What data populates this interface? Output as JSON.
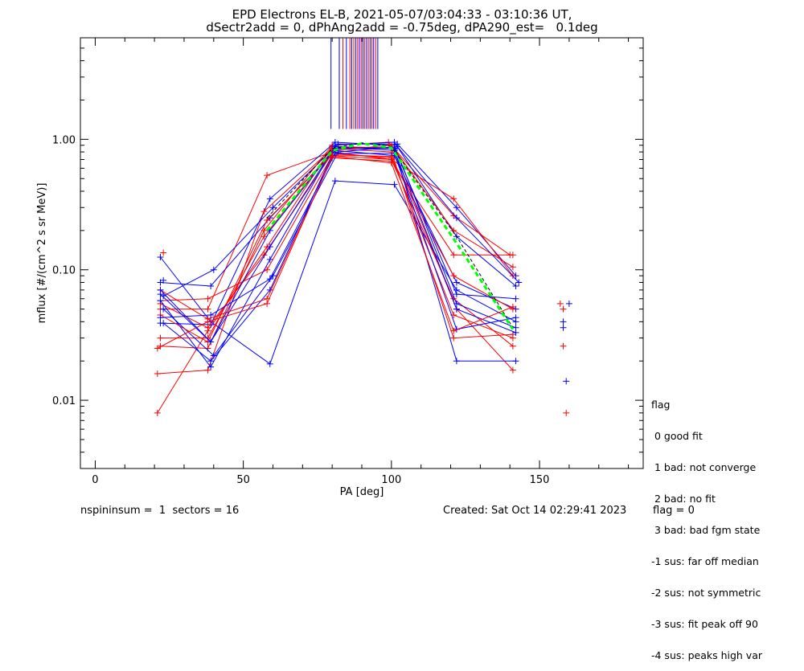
{
  "title_line1": "EPD Electrons EL-B, 2021-05-07/03:04:33 - 03:10:36 UT,",
  "title_line2": "dSectr2add = 0, dPhAng2add = -0.75deg, dPA290_est=   0.1deg",
  "footer": {
    "nspin": "nspininsum =  1  sectors = 16",
    "created": "Created: Sat Oct 14 02:29:41 2023",
    "flag": "flag = 0"
  },
  "legend": {
    "title": "flag",
    "items": [
      " 0 good fit",
      " 1 bad: not converge",
      " 2 bad: no fit",
      " 3 bad: bad fgm state",
      "-1 sus: far off median",
      "-2 sus: not symmetric",
      "-3 sus: fit peak off 90",
      "-4 sus: peaks high var"
    ]
  },
  "colors": {
    "red": "#ff0000",
    "blue": "#0000ff",
    "green": "#00ff00",
    "black": "#000000"
  },
  "chart_data": {
    "type": "line",
    "xlabel": "PA [deg]",
    "ylabel": "mflux [#/(cm^2 s sr MeV)]",
    "xlim": [
      -5,
      185
    ],
    "ylim": [
      0.003,
      6.0
    ],
    "yscale": "log",
    "xticks": [
      0,
      50,
      100,
      150
    ],
    "yticks": [
      0.01,
      0.1,
      1.0
    ],
    "ytick_labels": [
      "0.01",
      "0.10",
      "1.00"
    ],
    "series": [
      {
        "color": "red",
        "x": [
          21,
          38,
          58,
          80,
          100,
          122,
          141
        ],
        "y": [
          0.008,
          0.034,
          0.15,
          0.88,
          0.86,
          0.05,
          0.017
        ]
      },
      {
        "color": "blue",
        "x": [
          22,
          39,
          59,
          81,
          101,
          122,
          142
        ],
        "y": [
          0.125,
          0.04,
          0.019,
          0.48,
          0.45,
          0.07,
          0.04
        ]
      },
      {
        "color": "red",
        "x": [
          22,
          38,
          58,
          80,
          100,
          121,
          141
        ],
        "y": [
          0.05,
          0.05,
          0.53,
          0.8,
          0.7,
          0.06,
          0.026
        ]
      },
      {
        "color": "blue",
        "x": [
          22,
          39,
          59,
          81,
          101,
          122,
          142
        ],
        "y": [
          0.039,
          0.038,
          0.35,
          0.95,
          0.9,
          0.055,
          0.036
        ]
      },
      {
        "color": "red",
        "x": [
          21,
          38,
          57,
          80,
          100,
          121,
          141
        ],
        "y": [
          0.016,
          0.017,
          0.28,
          0.85,
          0.8,
          0.03,
          0.032
        ]
      },
      {
        "color": "blue",
        "x": [
          23,
          40,
          60,
          82,
          102,
          122,
          142
        ],
        "y": [
          0.063,
          0.1,
          0.3,
          0.92,
          0.92,
          0.3,
          0.09
        ]
      },
      {
        "color": "red",
        "x": [
          22,
          38,
          57,
          80,
          99,
          121,
          140
        ],
        "y": [
          0.026,
          0.025,
          0.2,
          0.9,
          0.95,
          0.26,
          0.13
        ]
      },
      {
        "color": "blue",
        "x": [
          22,
          39,
          59,
          81,
          101,
          122,
          142
        ],
        "y": [
          0.08,
          0.075,
          0.25,
          0.82,
          0.75,
          0.08,
          0.05
        ]
      },
      {
        "color": "red",
        "x": [
          22,
          38,
          58,
          80,
          100,
          121,
          141
        ],
        "y": [
          0.058,
          0.06,
          0.1,
          0.75,
          0.7,
          0.35,
          0.09
        ]
      },
      {
        "color": "blue",
        "x": [
          23,
          39,
          59,
          81,
          101,
          122,
          142
        ],
        "y": [
          0.039,
          0.02,
          0.07,
          0.85,
          0.85,
          0.02,
          0.02
        ]
      },
      {
        "color": "red",
        "x": [
          22,
          38,
          57,
          80,
          100,
          121,
          141
        ],
        "y": [
          0.055,
          0.036,
          0.13,
          0.78,
          0.72,
          0.09,
          0.05
        ]
      },
      {
        "color": "blue",
        "x": [
          22,
          39,
          59,
          81,
          101,
          122,
          142
        ],
        "y": [
          0.065,
          0.028,
          0.15,
          0.88,
          0.82,
          0.05,
          0.033
        ]
      },
      {
        "color": "red",
        "x": [
          22,
          38,
          58,
          80,
          100,
          121,
          141
        ],
        "y": [
          0.07,
          0.042,
          0.06,
          0.72,
          0.68,
          0.13,
          0.13
        ]
      },
      {
        "color": "blue",
        "x": [
          22,
          39,
          59,
          81,
          101,
          122,
          142
        ],
        "y": [
          0.058,
          0.018,
          0.12,
          0.9,
          0.95,
          0.18,
          0.075
        ]
      },
      {
        "color": "red",
        "x": [
          22,
          38,
          57,
          80,
          100,
          121,
          141
        ],
        "y": [
          0.03,
          0.03,
          0.18,
          0.82,
          0.9,
          0.2,
          0.105
        ]
      },
      {
        "color": "blue",
        "x": [
          23,
          40,
          60,
          82,
          102,
          122,
          143
        ],
        "y": [
          0.05,
          0.022,
          0.09,
          0.8,
          0.88,
          0.25,
          0.08
        ]
      },
      {
        "color": "red",
        "x": [
          22,
          38,
          58,
          80,
          100,
          121,
          141
        ],
        "y": [
          0.045,
          0.028,
          0.24,
          0.76,
          0.74,
          0.045,
          0.03
        ]
      },
      {
        "color": "blue",
        "x": [
          22,
          39,
          59,
          81,
          101,
          122,
          142
        ],
        "y": [
          0.043,
          0.045,
          0.085,
          0.78,
          0.78,
          0.035,
          0.043
        ]
      },
      {
        "color": "red",
        "x": [
          21,
          38,
          58,
          80,
          100,
          121,
          141
        ],
        "y": [
          0.025,
          0.04,
          0.055,
          0.74,
          0.66,
          0.034,
          0.052
        ]
      },
      {
        "color": "blue",
        "x": [
          22,
          39,
          59,
          81,
          101,
          122,
          142
        ],
        "y": [
          0.07,
          0.028,
          0.2,
          0.86,
          0.86,
          0.065,
          0.06
        ]
      },
      {
        "color": "black",
        "dashed": true,
        "x": [
          58,
          80,
          90,
          100,
          122,
          141
        ],
        "y": [
          0.25,
          0.85,
          0.94,
          0.88,
          0.18,
          0.036
        ]
      },
      {
        "color": "green",
        "dashed": true,
        "thick": true,
        "x": [
          58,
          80,
          90,
          100,
          122,
          141
        ],
        "y": [
          0.2,
          0.82,
          0.93,
          0.86,
          0.16,
          0.035
        ]
      }
    ],
    "isolated_points": [
      {
        "color": "red",
        "x": 157,
        "y": 0.055
      },
      {
        "color": "red",
        "x": 158,
        "y": 0.05
      },
      {
        "color": "red",
        "x": 158,
        "y": 0.026
      },
      {
        "color": "red",
        "x": 159,
        "y": 0.008
      },
      {
        "color": "blue",
        "x": 158,
        "y": 0.04
      },
      {
        "color": "blue",
        "x": 159,
        "y": 0.014
      },
      {
        "color": "blue",
        "x": 160,
        "y": 0.055
      },
      {
        "color": "blue",
        "x": 158,
        "y": 0.036
      },
      {
        "color": "red",
        "x": 23,
        "y": 0.135
      },
      {
        "color": "blue",
        "x": 23,
        "y": 0.083
      }
    ],
    "vertical_markers": [
      {
        "color": "blue",
        "x": 79.6
      },
      {
        "color": "blue",
        "x": 82.4
      },
      {
        "color": "red",
        "x": 83.6
      },
      {
        "color": "blue",
        "x": 84.8
      },
      {
        "color": "red",
        "x": 86.0
      },
      {
        "color": "blue",
        "x": 86.6
      },
      {
        "color": "red",
        "x": 87.3
      },
      {
        "color": "blue",
        "x": 88.0
      },
      {
        "color": "red",
        "x": 88.6
      },
      {
        "color": "blue",
        "x": 89.2
      },
      {
        "color": "red",
        "x": 89.8
      },
      {
        "color": "blue",
        "x": 90.4
      },
      {
        "color": "red",
        "x": 91.0
      },
      {
        "color": "blue",
        "x": 91.6
      },
      {
        "color": "red",
        "x": 92.2
      },
      {
        "color": "blue",
        "x": 92.8
      },
      {
        "color": "red",
        "x": 93.4
      },
      {
        "color": "blue",
        "x": 94.0
      },
      {
        "color": "red",
        "x": 94.7
      },
      {
        "color": "blue",
        "x": 95.4
      }
    ],
    "vertical_marker_ymin": 1.2
  }
}
